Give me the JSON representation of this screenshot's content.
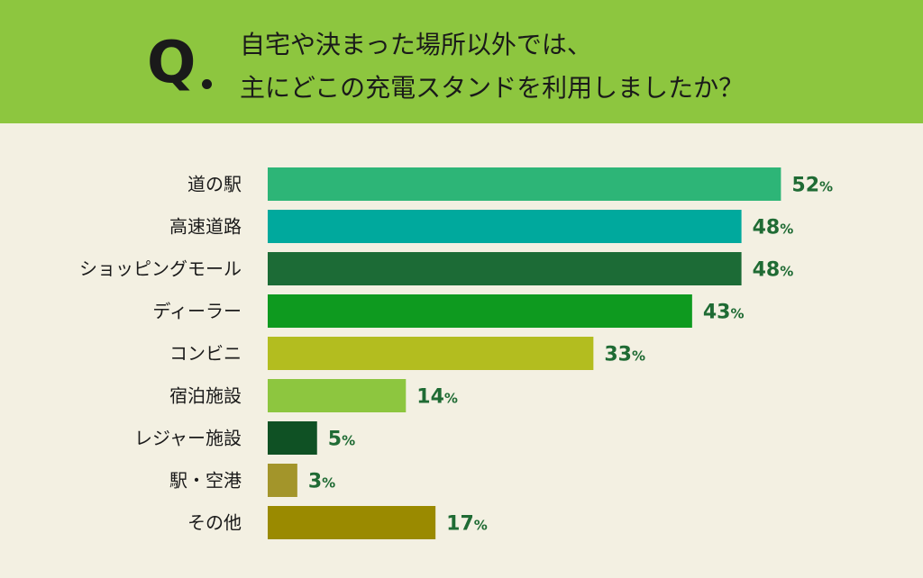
{
  "question": {
    "mark": "Q",
    "line1": "自宅や決まった場所以外では、",
    "line2": "主にどこの充電スタンドを利用しましたか？"
  },
  "colors": {
    "header_bg": "#8dc63f",
    "page_bg": "#f3f0e2",
    "value_text": "#1f6b34"
  },
  "chart_data": {
    "type": "bar",
    "orientation": "horizontal",
    "title": "自宅や決まった場所以外では、主にどこの充電スタンドを利用しましたか？",
    "unit": "%",
    "categories": [
      "道の駅",
      "高速道路",
      "ショッピングモール",
      "ディーラー",
      "コンビニ",
      "宿泊施設",
      "レジャー施設",
      "駅・空港",
      "その他"
    ],
    "values": [
      52,
      48,
      48,
      43,
      33,
      14,
      5,
      3,
      17
    ],
    "bar_colors": [
      "#2db577",
      "#00a99d",
      "#1c6b36",
      "#0e9a1f",
      "#b3bd1f",
      "#8dc63f",
      "#0f5124",
      "#a3952a",
      "#9a8a00"
    ],
    "xlim": [
      0,
      100
    ],
    "grid": false,
    "legend": "none"
  }
}
